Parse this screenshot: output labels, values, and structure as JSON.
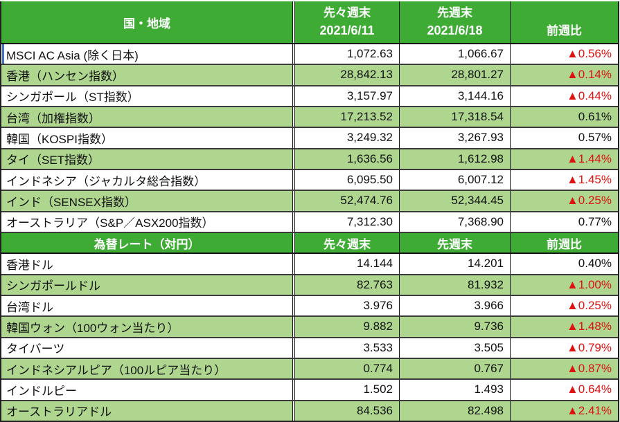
{
  "colors": {
    "header_bg": "#3eac34",
    "header_text": "#ffffff",
    "alt_row_bg": "#aed68f",
    "negative_red": "#e01111",
    "selection_blue": "#4472c4",
    "grid_dark": "#3a3a3a"
  },
  "table": {
    "sections": [
      {
        "header": {
          "col1": "国・地域",
          "col2_line1": "先々週末",
          "col2_line2": "2021/6/11",
          "col3_line1": "先週末",
          "col3_line2": "2021/6/18",
          "col4": "前週比"
        },
        "rows": [
          {
            "name": "MSCI AC Asia (除く日本)",
            "prev2": "1,072.63",
            "prev1": "1,066.67",
            "change": "▲0.56%",
            "negative": true
          },
          {
            "name": "香港（ハンセン指数）",
            "prev2": "28,842.13",
            "prev1": "28,801.27",
            "change": "▲0.14%",
            "negative": true
          },
          {
            "name": "シンガポール（ST指数）",
            "prev2": "3,157.97",
            "prev1": "3,144.16",
            "change": "▲0.44%",
            "negative": true
          },
          {
            "name": "台湾（加権指数）",
            "prev2": "17,213.52",
            "prev1": "17,318.54",
            "change": "0.61%",
            "negative": false
          },
          {
            "name": "韓国（KOSPI指数）",
            "prev2": "3,249.32",
            "prev1": "3,267.93",
            "change": "0.57%",
            "negative": false
          },
          {
            "name": "タイ（SET指数）",
            "prev2": "1,636.56",
            "prev1": "1,612.98",
            "change": "▲1.44%",
            "negative": true
          },
          {
            "name": "インドネシア（ジャカルタ総合指数）",
            "prev2": "6,095.50",
            "prev1": "6,007.12",
            "change": "▲1.45%",
            "negative": true
          },
          {
            "name": "インド（SENSEX指数）",
            "prev2": "52,474.76",
            "prev1": "52,344.45",
            "change": "▲0.25%",
            "negative": true
          },
          {
            "name": "オーストラリア（S&P／ASX200指数）",
            "prev2": "7,312.30",
            "prev1": "7,368.90",
            "change": "0.77%",
            "negative": false
          }
        ]
      },
      {
        "header": {
          "col1": "為替レート（対円）",
          "col2": "先々週末",
          "col3": "先週末",
          "col4": "前週比"
        },
        "rows": [
          {
            "name": "香港ドル",
            "prev2": "14.144",
            "prev1": "14.201",
            "change": "0.40%",
            "negative": false
          },
          {
            "name": "シンガポールドル",
            "prev2": "82.763",
            "prev1": "81.932",
            "change": "▲1.00%",
            "negative": true
          },
          {
            "name": "台湾ドル",
            "prev2": "3.976",
            "prev1": "3.966",
            "change": "▲0.25%",
            "negative": true
          },
          {
            "name": "韓国ウォン（100ウォン当たり）",
            "prev2": "9.882",
            "prev1": "9.736",
            "change": "▲1.48%",
            "negative": true
          },
          {
            "name": "タイバーツ",
            "prev2": "3.533",
            "prev1": "3.505",
            "change": "▲0.79%",
            "negative": true
          },
          {
            "name": "インドネシアルピア（100ルピア当たり）",
            "prev2": "0.774",
            "prev1": "0.767",
            "change": "▲0.87%",
            "negative": true
          },
          {
            "name": "インドルピー",
            "prev2": "1.502",
            "prev1": "1.493",
            "change": "▲0.64%",
            "negative": true
          },
          {
            "name": "オーストラリアドル",
            "prev2": "84.536",
            "prev1": "82.498",
            "change": "▲2.41%",
            "negative": true
          }
        ]
      }
    ]
  },
  "chart_data": [
    {
      "type": "table",
      "title": "国・地域",
      "columns": [
        "国・地域",
        "先々週末 2021/6/11",
        "先週末 2021/6/18",
        "前週比"
      ],
      "rows": [
        [
          "MSCI AC Asia (除く日本)",
          1072.63,
          1066.67,
          "-0.56%"
        ],
        [
          "香港（ハンセン指数）",
          28842.13,
          28801.27,
          "-0.14%"
        ],
        [
          "シンガポール（ST指数）",
          3157.97,
          3144.16,
          "-0.44%"
        ],
        [
          "台湾（加権指数）",
          17213.52,
          17318.54,
          "+0.61%"
        ],
        [
          "韓国（KOSPI指数）",
          3249.32,
          3267.93,
          "+0.57%"
        ],
        [
          "タイ（SET指数）",
          1636.56,
          1612.98,
          "-1.44%"
        ],
        [
          "インドネシア（ジャカルタ総合指数）",
          6095.5,
          6007.12,
          "-1.45%"
        ],
        [
          "インド（SENSEX指数）",
          52474.76,
          52344.45,
          "-0.25%"
        ],
        [
          "オーストラリア（S&P／ASX200指数）",
          7312.3,
          7368.9,
          "+0.77%"
        ]
      ]
    },
    {
      "type": "table",
      "title": "為替レート（対円）",
      "columns": [
        "為替レート（対円）",
        "先々週末",
        "先週末",
        "前週比"
      ],
      "rows": [
        [
          "香港ドル",
          14.144,
          14.201,
          "+0.40%"
        ],
        [
          "シンガポールドル",
          82.763,
          81.932,
          "-1.00%"
        ],
        [
          "台湾ドル",
          3.976,
          3.966,
          "-0.25%"
        ],
        [
          "韓国ウォン（100ウォン当たり）",
          9.882,
          9.736,
          "-1.48%"
        ],
        [
          "タイバーツ",
          3.533,
          3.505,
          "-0.79%"
        ],
        [
          "インドネシアルピア（100ルピア当たり）",
          0.774,
          0.767,
          "-0.87%"
        ],
        [
          "インドルピー",
          1.502,
          1.493,
          "-0.64%"
        ],
        [
          "オーストラリアドル",
          84.536,
          82.498,
          "-2.41%"
        ]
      ]
    }
  ]
}
